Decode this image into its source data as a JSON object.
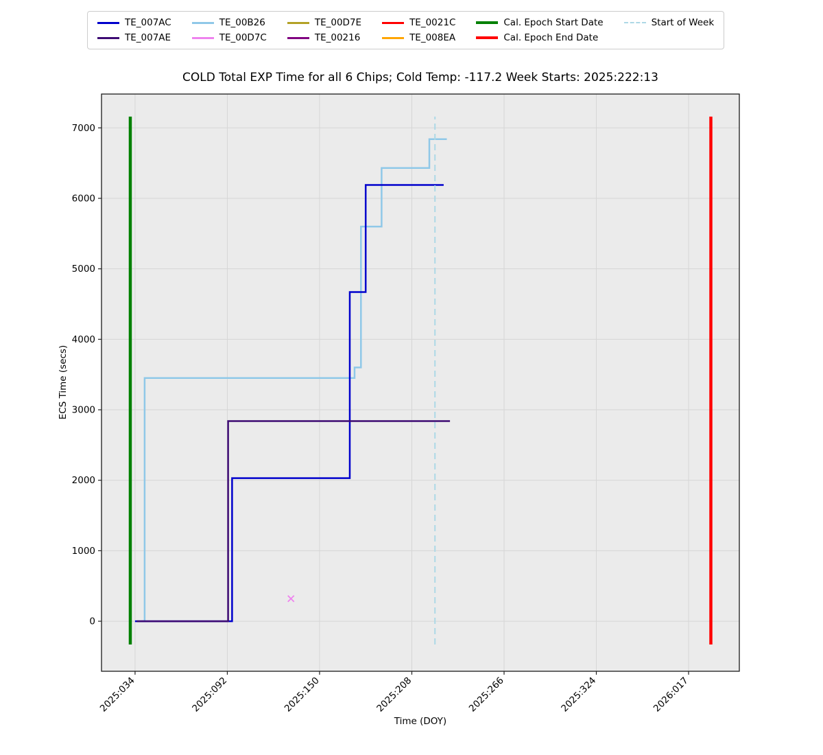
{
  "title": "COLD Total EXP Time for all 6 Chips; Cold Temp: -117.2 Week Starts: 2025:222:13",
  "axes": {
    "xlabel": "Time (DOY)",
    "ylabel": "ECS Time (secs)"
  },
  "legend": {
    "entries": [
      {
        "label": "TE_007AC",
        "color": "#0000cc",
        "dash": false,
        "weight": 3
      },
      {
        "label": "TE_00B26",
        "color": "#8fc8e8",
        "dash": false,
        "weight": 3
      },
      {
        "label": "TE_00D7E",
        "color": "#b3a125",
        "dash": false,
        "weight": 3
      },
      {
        "label": "TE_0021C",
        "color": "#ff0000",
        "dash": false,
        "weight": 3
      },
      {
        "label": "Cal. Epoch Start Date",
        "color": "#008000",
        "dash": false,
        "weight": 4
      },
      {
        "label": "Start of Week",
        "color": "#add8e6",
        "dash": true,
        "weight": 2
      },
      {
        "label": "TE_007AE",
        "color": "#3d0a73",
        "dash": false,
        "weight": 3
      },
      {
        "label": "TE_00D7C",
        "color": "#ee82ee",
        "dash": false,
        "weight": 3
      },
      {
        "label": "TE_00216",
        "color": "#800080",
        "dash": false,
        "weight": 3
      },
      {
        "label": "TE_008EA",
        "color": "#ffa500",
        "dash": false,
        "weight": 3
      },
      {
        "label": "Cal. Epoch End Date",
        "color": "#ff0000",
        "dash": false,
        "weight": 4
      }
    ]
  },
  "chart_data": {
    "type": "line",
    "step": true,
    "title": "COLD Total EXP Time for all 6 Chips; Cold Temp: -117.2 Week Starts: 2025:222:13",
    "xlabel": "Time (DOY)",
    "ylabel": "ECS Time (secs)",
    "x_unit": "day of year 2025 (2026 dates continue past day 365)",
    "grid": true,
    "legend_position": "top-outside",
    "xlim": [
      12.9,
      413.9
    ],
    "ylim": [
      -710,
      7480
    ],
    "x_ticks": [
      {
        "value": 34,
        "label": "2025:034"
      },
      {
        "value": 92,
        "label": "2025:092"
      },
      {
        "value": 150,
        "label": "2025:150"
      },
      {
        "value": 208,
        "label": "2025:208"
      },
      {
        "value": 266,
        "label": "2025:266"
      },
      {
        "value": 324,
        "label": "2025:324"
      },
      {
        "value": 382,
        "label": "2026:017"
      }
    ],
    "y_ticks": [
      0,
      1000,
      2000,
      3000,
      4000,
      5000,
      6000,
      7000
    ],
    "series": [
      {
        "name": "TE_00B26",
        "color": "#8fc8e8",
        "width": 2.5,
        "points": [
          [
            38,
            0
          ],
          [
            40,
            0
          ],
          [
            40,
            3450
          ],
          [
            172,
            3450
          ],
          [
            172,
            3600
          ],
          [
            176,
            3600
          ],
          [
            176,
            5600
          ],
          [
            189,
            5600
          ],
          [
            189,
            6430
          ],
          [
            219,
            6430
          ],
          [
            219,
            6840
          ],
          [
            230,
            6840
          ]
        ]
      },
      {
        "name": "TE_007AC",
        "color": "#0000cc",
        "width": 2.5,
        "points": [
          [
            34,
            0
          ],
          [
            95,
            0
          ],
          [
            95,
            2030
          ],
          [
            169,
            2030
          ],
          [
            169,
            4670
          ],
          [
            179,
            4670
          ],
          [
            179,
            6190
          ],
          [
            228,
            6190
          ]
        ]
      },
      {
        "name": "TE_007AE",
        "color": "#3d0a73",
        "width": 2.5,
        "points": [
          [
            35,
            0
          ],
          [
            92.5,
            0
          ],
          [
            92.5,
            2840
          ],
          [
            232,
            2840
          ]
        ]
      }
    ],
    "markers": [
      {
        "name": "TE_00D7C",
        "shape": "x",
        "color": "#ee82ee",
        "x": 132,
        "y": 320
      }
    ],
    "vlines": [
      {
        "name": "Cal. Epoch Start Date",
        "x": 31,
        "ymin": -330,
        "ymax": 7160,
        "color": "#008000",
        "width": 4.5,
        "dash": false
      },
      {
        "name": "Cal. Epoch End Date",
        "x": 396,
        "ymin": -330,
        "ymax": 7160,
        "color": "#ff0000",
        "width": 4.5,
        "dash": false
      },
      {
        "name": "Start of Week",
        "x": 222.54,
        "ymin": -330,
        "ymax": 7160,
        "color": "#add8e6",
        "width": 2,
        "dash": true
      }
    ]
  },
  "style": {
    "plot_bg": "#ebebeb",
    "grid_color": "#d6d6d6",
    "frame_color": "#1a1a1a",
    "tick_color": "#222222",
    "text_color": "#000000"
  }
}
